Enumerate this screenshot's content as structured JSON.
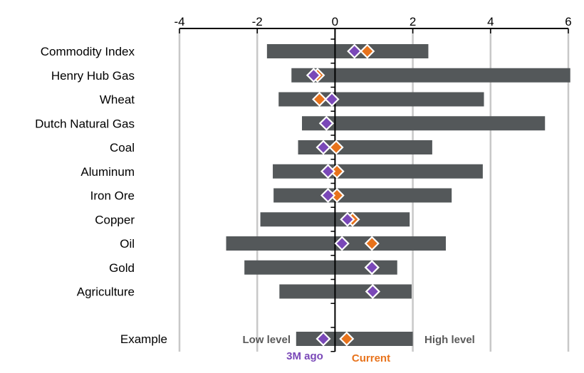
{
  "chart_data": {
    "type": "range-bar",
    "x_ticks": [
      -4,
      -2,
      0,
      2,
      4,
      6
    ],
    "xlim": [
      -4,
      6
    ],
    "grid": "vertical",
    "colors": {
      "bar": "#54585a",
      "three_month_ago": "#7a48b8",
      "current": "#e8731c",
      "grid": "#c8c8c8",
      "axis": "#000000"
    },
    "categories": [
      "Commodity Index",
      "Henry Hub Gas",
      "Wheat",
      "Dutch Natural Gas",
      "Coal",
      "Aluminum",
      "Iron Ore",
      "Copper",
      "Oil",
      "Gold",
      "Agriculture"
    ],
    "low": [
      -1.75,
      -1.12,
      -1.45,
      -0.85,
      -0.95,
      -1.6,
      -1.58,
      -1.92,
      -2.8,
      -2.33,
      -1.43
    ],
    "high": [
      2.4,
      6.05,
      3.83,
      5.4,
      2.5,
      3.8,
      3.0,
      1.92,
      2.85,
      1.6,
      1.97
    ],
    "three_month_ago": [
      0.5,
      -0.55,
      -0.08,
      -0.22,
      -0.3,
      -0.18,
      -0.18,
      0.32,
      0.18,
      0.95,
      0.97
    ],
    "current": [
      0.83,
      -0.45,
      -0.4,
      -0.22,
      0.03,
      0.05,
      0.05,
      0.45,
      0.95,
      0.95,
      0.97
    ],
    "example": {
      "label": "Example",
      "low": -1.0,
      "high": 2.0,
      "three_month_ago": -0.3,
      "current": 0.3,
      "low_label": "Low level",
      "high_label": "High level",
      "three_month_ago_label": "3M ago",
      "current_label": "Current"
    }
  }
}
